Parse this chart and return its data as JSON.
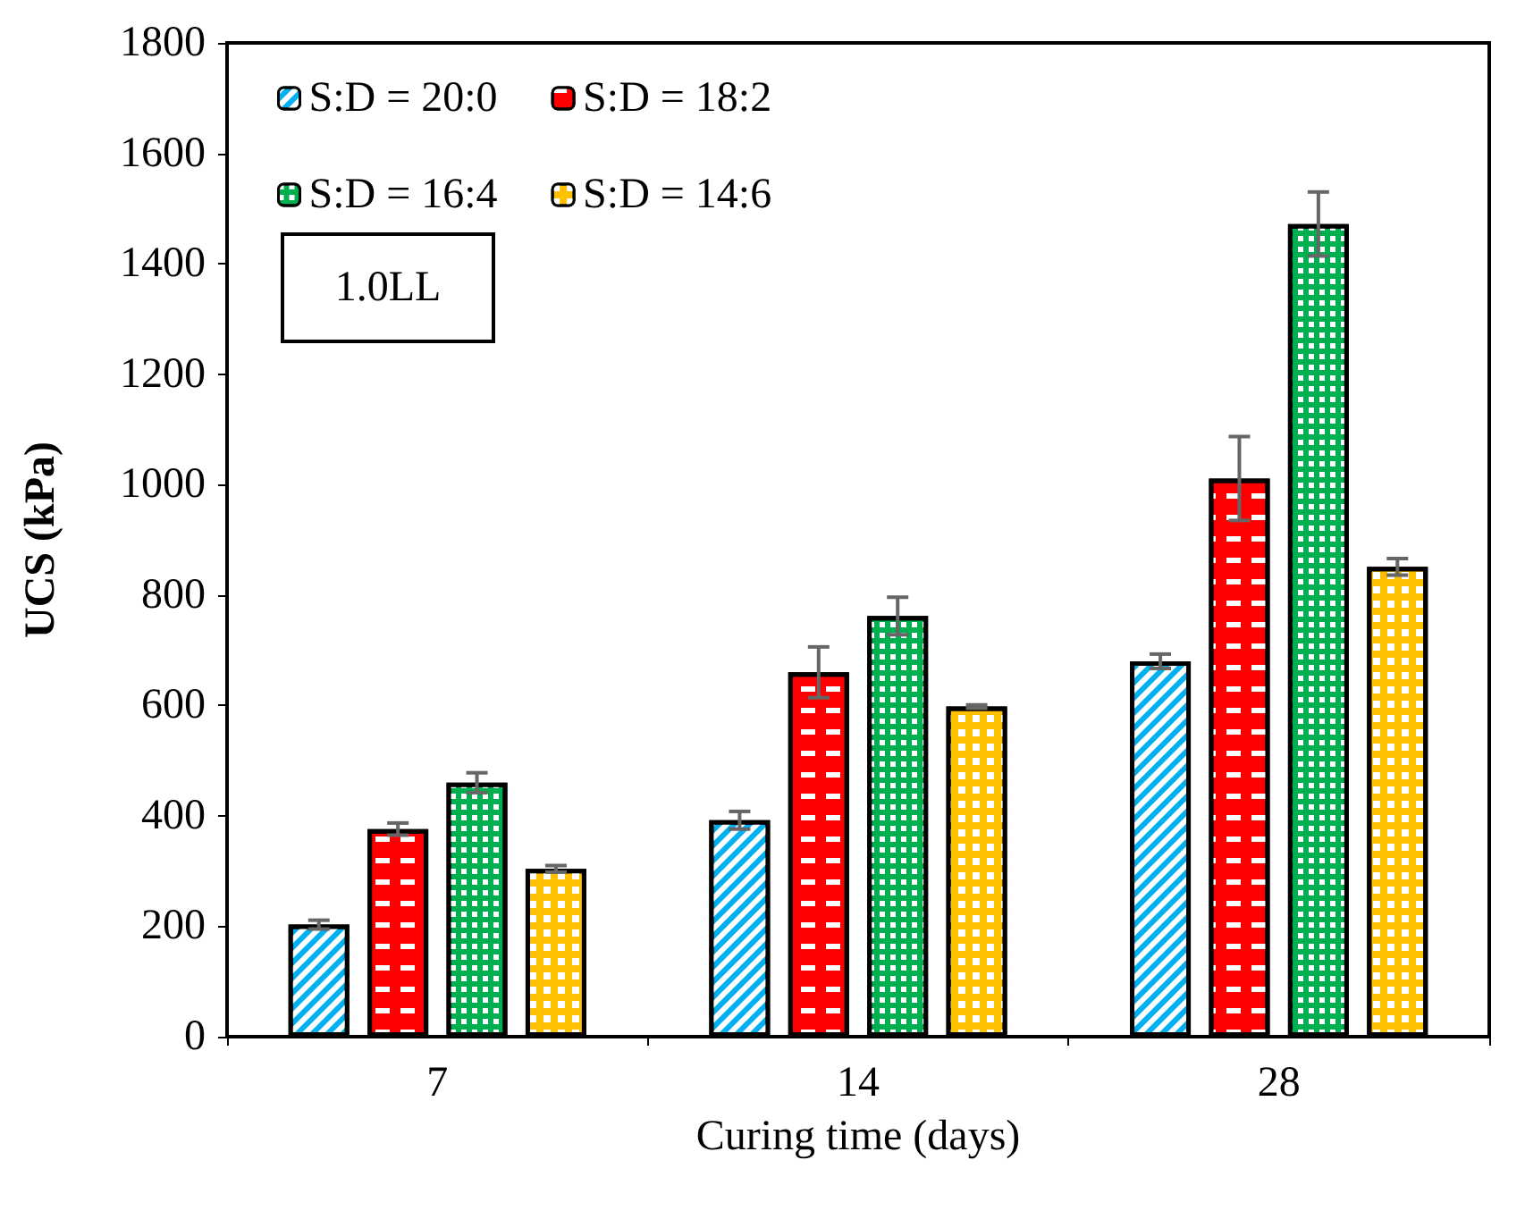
{
  "chart_data": {
    "type": "bar",
    "xlabel": "Curing time (days)",
    "ylabel": "UCS (kPa)",
    "categories": [
      "7",
      "14",
      "28"
    ],
    "series": [
      {
        "name": "S:D = 20:0",
        "color": "#00b0f0",
        "values": [
          203,
          392,
          680
        ],
        "errors": [
          8,
          16,
          13
        ]
      },
      {
        "name": "S:D = 18:2",
        "color": "#ff0000",
        "values": [
          376,
          660,
          1011
        ],
        "errors": [
          11,
          46,
          76
        ]
      },
      {
        "name": "S:D = 16:4",
        "color": "#00b050",
        "values": [
          460,
          762,
          1472
        ],
        "errors": [
          18,
          34,
          58
        ]
      },
      {
        "name": "S:D = 14:6",
        "color": "#ffc000",
        "values": [
          304,
          598,
          851
        ],
        "errors": [
          6,
          3,
          15
        ]
      }
    ],
    "ylim": [
      0,
      1800
    ],
    "yticks": [
      0,
      200,
      400,
      600,
      800,
      1000,
      1200,
      1400,
      1600,
      1800
    ],
    "grid": false,
    "legend": "top left",
    "annotations": [
      "1.0LL"
    ]
  }
}
